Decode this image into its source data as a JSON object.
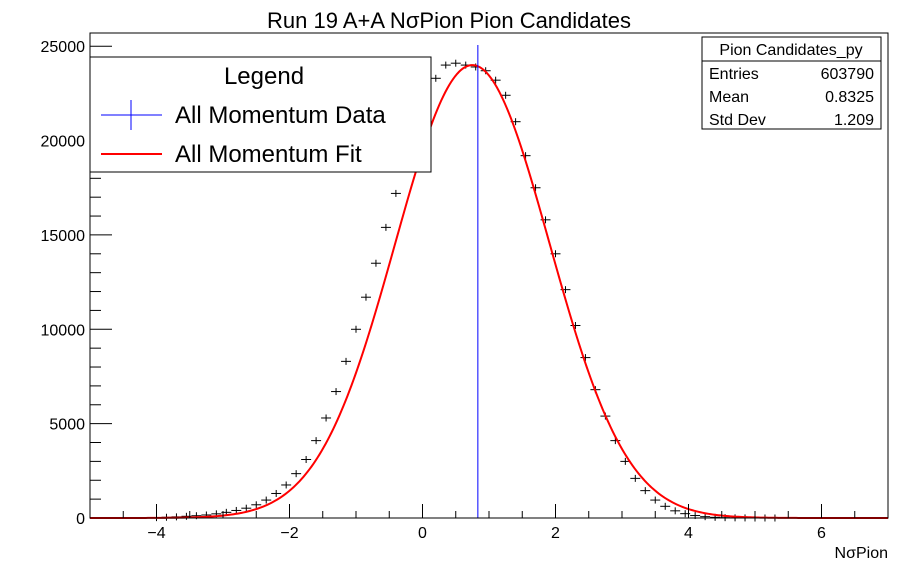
{
  "chart_data": {
    "type": "histogram",
    "title": "Run 19 A+A NσPion Pion Candidates",
    "xlabel": "NσPion",
    "ylabel": "",
    "xlim": [
      -5,
      7
    ],
    "ylim": [
      0,
      25700
    ],
    "x_ticks": [
      -4,
      -2,
      0,
      2,
      4,
      6
    ],
    "y_ticks": [
      0,
      5000,
      10000,
      15000,
      20000,
      25000
    ],
    "grid": false,
    "legend": {
      "title": "Legend",
      "placement": "top-left",
      "entries": [
        {
          "label": "All Momentum Data",
          "color": "#0000ff",
          "style": "errorbar-cross"
        },
        {
          "label": "All Momentum Fit",
          "color": "#ff0000",
          "style": "line"
        }
      ]
    },
    "stats_box": {
      "title": "Pion Candidates_py",
      "placement": "top-right",
      "rows": [
        {
          "label": "Entries",
          "value": "603790"
        },
        {
          "label": "Mean",
          "value": "0.8325"
        },
        {
          "label": "Std Dev",
          "value": "1.209"
        }
      ]
    },
    "mean_marker": {
      "x": 0.8325,
      "color": "#0000ff"
    },
    "series": [
      {
        "name": "All Momentum Data",
        "kind": "points",
        "color": "#000000",
        "bin_width": 0.15,
        "x": [
          -4.0,
          -3.85,
          -3.7,
          -3.55,
          -3.4,
          -3.25,
          -3.1,
          -2.95,
          -2.8,
          -2.65,
          -2.5,
          -2.35,
          -2.2,
          -2.05,
          -1.9,
          -1.75,
          -1.6,
          -1.45,
          -1.3,
          -1.15,
          -1.0,
          -0.85,
          -0.7,
          -0.55,
          -0.4,
          -0.25,
          -0.1,
          0.05,
          0.2,
          0.35,
          0.5,
          0.65,
          0.8,
          0.95,
          1.1,
          1.25,
          1.4,
          1.55,
          1.7,
          1.85,
          2.0,
          2.15,
          2.3,
          2.45,
          2.6,
          2.75,
          2.9,
          3.05,
          3.2,
          3.35,
          3.5,
          3.65,
          3.8,
          3.95,
          4.1,
          4.25,
          4.4,
          4.55,
          4.7,
          4.85,
          5.0,
          5.15,
          5.3
        ],
        "y": [
          20,
          40,
          60,
          90,
          120,
          160,
          220,
          300,
          400,
          520,
          700,
          950,
          1300,
          1750,
          2350,
          3100,
          4100,
          5300,
          6700,
          8300,
          10000,
          11700,
          13500,
          15400,
          17200,
          19100,
          20800,
          22300,
          23300,
          24000,
          24100,
          24000,
          23900,
          23700,
          23200,
          22400,
          21000,
          19200,
          17500,
          15800,
          14000,
          12100,
          10200,
          8500,
          6800,
          5400,
          4100,
          3000,
          2100,
          1450,
          950,
          620,
          380,
          230,
          130,
          70,
          35,
          18,
          9,
          5,
          2,
          1,
          0
        ]
      },
      {
        "name": "All Momentum Fit",
        "kind": "gaussian",
        "color": "#ff0000",
        "amplitude": 24000,
        "mean": 0.75,
        "sigma": 1.16,
        "x_range": [
          -5,
          7
        ]
      }
    ]
  }
}
